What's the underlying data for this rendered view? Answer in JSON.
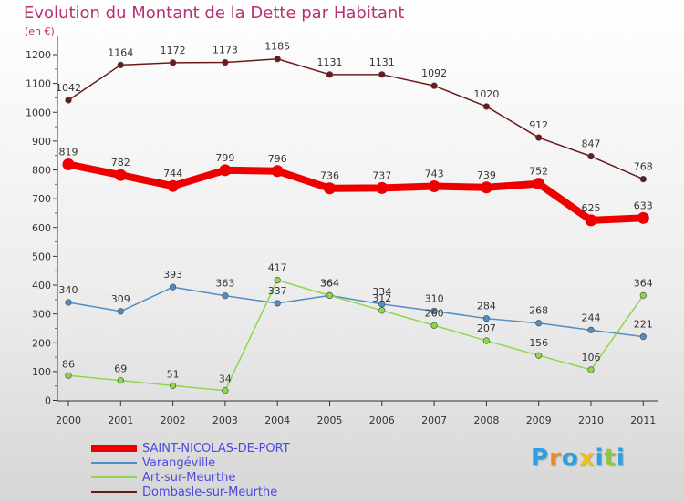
{
  "chart_data": {
    "type": "line",
    "title": "Evolution du Montant de la Dette par Habitant",
    "subtitle": "(en €)",
    "xlabel": "",
    "ylabel": "",
    "categories": [
      "2000",
      "2001",
      "2002",
      "2003",
      "2004",
      "2005",
      "2006",
      "2007",
      "2008",
      "2009",
      "2010",
      "2011"
    ],
    "ylim": [
      0,
      1200
    ],
    "yticks": [
      0,
      100,
      200,
      300,
      400,
      500,
      600,
      700,
      800,
      900,
      1000,
      1100,
      1200
    ],
    "grid": false,
    "series": [
      {
        "name": "SAINT-NICOLAS-DE-PORT",
        "color": "#ee0000",
        "values": [
          819,
          782,
          744,
          799,
          796,
          736,
          737,
          743,
          739,
          752,
          625,
          633
        ]
      },
      {
        "name": "Varangéville",
        "color": "#4f8ec6",
        "values": [
          340,
          309,
          393,
          363,
          337,
          364,
          334,
          310,
          284,
          268,
          244,
          221
        ]
      },
      {
        "name": "Art-sur-Meurthe",
        "color": "#8ed64a",
        "values": [
          86,
          69,
          51,
          34,
          417,
          364,
          312,
          260,
          207,
          156,
          106,
          364
        ]
      },
      {
        "name": "Dombasle-sur-Meurthe",
        "color": "#6b1a1a",
        "values": [
          1042,
          1164,
          1172,
          1173,
          1185,
          1131,
          1131,
          1092,
          1020,
          912,
          847,
          768
        ]
      }
    ]
  },
  "logo": {
    "text": "Proxiti",
    "letters": [
      "P",
      "r",
      "o",
      "x",
      "i",
      "t",
      "i"
    ],
    "colors": [
      "#2e9fe0",
      "#f08a1c",
      "#2e9fe0",
      "#f0c01c",
      "#2e9fe0",
      "#8dc63f",
      "#2e9fe0"
    ]
  }
}
